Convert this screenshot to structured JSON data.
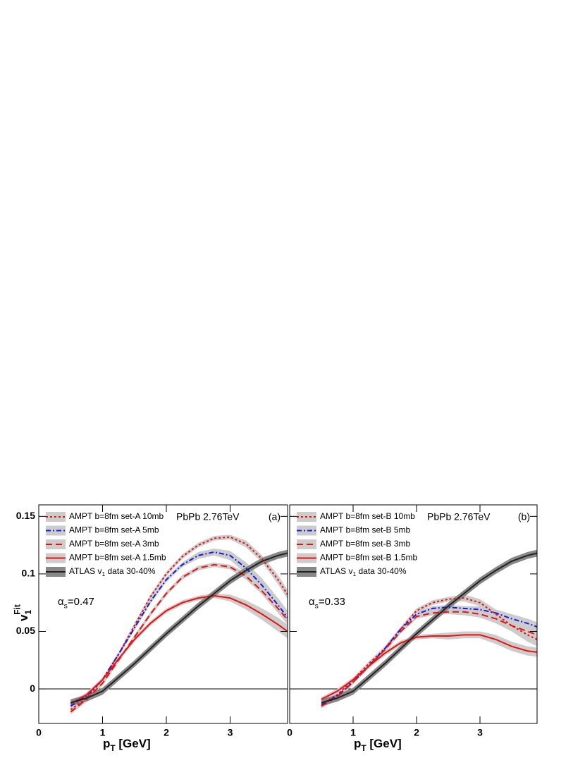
{
  "chart_data": [
    {
      "type": "line",
      "panel_label": "(a)",
      "annotation": "PbPb 2.76TeV",
      "alpha_label": {
        "base": "α",
        "sub": "s",
        "post": "=0.47"
      },
      "x_label": {
        "base": "p",
        "sub": "T",
        "post": " [GeV]"
      },
      "y_label": {
        "base": "v",
        "sub": "1",
        "sup": "Fit"
      },
      "xlim": [
        0,
        3.9
      ],
      "ylim": [
        -0.03,
        0.16
      ],
      "xticks": [
        0,
        1,
        2,
        3
      ],
      "yticks": [
        0,
        0.05,
        0.1,
        0.15
      ],
      "ytick_labels": true,
      "x": [
        0.5,
        0.75,
        1,
        1.25,
        1.5,
        1.75,
        2,
        2.25,
        2.5,
        2.75,
        3,
        3.25,
        3.5,
        3.75,
        3.9
      ],
      "series": [
        {
          "name": "AMPT b=8fm set-A 10mb",
          "color": "#e8120f",
          "dash": "dotted",
          "band_color": "#cccccc",
          "values": [
            -0.018,
            -0.008,
            0.008,
            0.03,
            0.055,
            0.08,
            0.1,
            0.115,
            0.125,
            0.131,
            0.132,
            0.126,
            0.113,
            0.095,
            0.082
          ],
          "errors": [
            0.002,
            0.002,
            0.002,
            0.002,
            0.002,
            0.002,
            0.002,
            0.002,
            0.002,
            0.002,
            0.002,
            0.003,
            0.003,
            0.004,
            0.004
          ]
        },
        {
          "name": "AMPT b=8fm set-A 5mb",
          "color": "#1a1ae0",
          "dash": "dashdot",
          "band_color": "#cccccc",
          "values": [
            -0.015,
            -0.006,
            0.008,
            0.03,
            0.053,
            0.076,
            0.095,
            0.108,
            0.116,
            0.119,
            0.116,
            0.105,
            0.09,
            0.073,
            0.062
          ],
          "errors": [
            0.002,
            0.002,
            0.002,
            0.002,
            0.002,
            0.002,
            0.002,
            0.002,
            0.003,
            0.003,
            0.004,
            0.005,
            0.006,
            0.006,
            0.006
          ]
        },
        {
          "name": "AMPT b=8fm set-A 3mb",
          "color": "#e8120f",
          "dash": "dashed",
          "band_color": "#cccccc",
          "values": [
            -0.02,
            -0.009,
            0.005,
            0.025,
            0.045,
            0.065,
            0.083,
            0.097,
            0.105,
            0.108,
            0.106,
            0.098,
            0.085,
            0.07,
            0.06
          ],
          "errors": [
            0.002,
            0.002,
            0.002,
            0.002,
            0.002,
            0.002,
            0.002,
            0.002,
            0.002,
            0.002,
            0.002,
            0.003,
            0.003,
            0.004,
            0.004
          ]
        },
        {
          "name": "AMPT b=8fm set-A 1.5mb",
          "color": "#e8120f",
          "dash": "solid",
          "band_color": "#cccccc",
          "values": [
            -0.013,
            -0.005,
            0.008,
            0.026,
            0.043,
            0.057,
            0.068,
            0.075,
            0.079,
            0.081,
            0.079,
            0.073,
            0.065,
            0.056,
            0.05
          ],
          "errors": [
            0.002,
            0.002,
            0.002,
            0.002,
            0.002,
            0.002,
            0.002,
            0.002,
            0.002,
            0.002,
            0.003,
            0.004,
            0.005,
            0.006,
            0.006
          ]
        },
        {
          "name": {
            "pre": "ATLAS v",
            "sub": "1",
            "post": " data 30-40%"
          },
          "color": "#222222",
          "dash": "solid",
          "band_color": "#888888",
          "values": [
            -0.012,
            -0.008,
            -0.002,
            0.01,
            0.022,
            0.035,
            0.048,
            0.06,
            0.072,
            0.083,
            0.094,
            0.103,
            0.111,
            0.116,
            0.118
          ],
          "errors": [
            0.003,
            0.003,
            0.003,
            0.003,
            0.003,
            0.003,
            0.003,
            0.003,
            0.003,
            0.003,
            0.003,
            0.003,
            0.003,
            0.003,
            0.003
          ]
        }
      ]
    },
    {
      "type": "line",
      "panel_label": "(b)",
      "annotation": "PbPb 2.76TeV",
      "alpha_label": {
        "base": "α",
        "sub": "s",
        "post": "=0.33"
      },
      "x_label": {
        "base": "p",
        "sub": "T",
        "post": " [GeV]"
      },
      "xlim": [
        0,
        3.9
      ],
      "ylim": [
        -0.03,
        0.16
      ],
      "xticks": [
        0,
        1,
        2,
        3
      ],
      "yticks": [
        0,
        0.05,
        0.1,
        0.15
      ],
      "ytick_labels": false,
      "x": [
        0.5,
        0.75,
        1,
        1.25,
        1.5,
        1.75,
        2,
        2.25,
        2.5,
        2.75,
        3,
        3.25,
        3.5,
        3.75,
        3.9
      ],
      "series": [
        {
          "name": "AMPT b=8fm set-B 10mb",
          "color": "#e8120f",
          "dash": "dotted",
          "band_color": "#cccccc",
          "values": [
            -0.013,
            -0.005,
            0.008,
            0.022,
            0.035,
            0.052,
            0.068,
            0.075,
            0.078,
            0.079,
            0.075,
            0.065,
            0.055,
            0.047,
            0.043
          ],
          "errors": [
            0.002,
            0.002,
            0.002,
            0.002,
            0.002,
            0.002,
            0.002,
            0.002,
            0.002,
            0.003,
            0.003,
            0.004,
            0.005,
            0.006,
            0.006
          ]
        },
        {
          "name": "AMPT b=8fm set-B 5mb",
          "color": "#1a1ae0",
          "dash": "dashdot",
          "band_color": "#cccccc",
          "values": [
            -0.014,
            -0.006,
            0.006,
            0.02,
            0.035,
            0.052,
            0.065,
            0.07,
            0.071,
            0.07,
            0.069,
            0.066,
            0.061,
            0.057,
            0.054
          ],
          "errors": [
            0.002,
            0.002,
            0.002,
            0.002,
            0.002,
            0.002,
            0.002,
            0.002,
            0.002,
            0.002,
            0.003,
            0.003,
            0.004,
            0.004,
            0.004
          ]
        },
        {
          "name": "AMPT b=8fm set-B 3mb",
          "color": "#e8120f",
          "dash": "dashed",
          "band_color": "#cccccc",
          "values": [
            -0.015,
            -0.007,
            0.006,
            0.02,
            0.034,
            0.05,
            0.063,
            0.066,
            0.067,
            0.067,
            0.065,
            0.061,
            0.055,
            0.05,
            0.047
          ],
          "errors": [
            0.002,
            0.002,
            0.002,
            0.002,
            0.002,
            0.002,
            0.002,
            0.002,
            0.002,
            0.003,
            0.003,
            0.004,
            0.005,
            0.006,
            0.006
          ]
        },
        {
          "name": "AMPT b=8fm set-B 1.5mb",
          "color": "#e8120f",
          "dash": "solid",
          "band_color": "#cccccc",
          "values": [
            -0.009,
            -0.002,
            0.008,
            0.02,
            0.031,
            0.04,
            0.045,
            0.046,
            0.046,
            0.047,
            0.047,
            0.043,
            0.037,
            0.033,
            0.032
          ],
          "errors": [
            0.002,
            0.002,
            0.002,
            0.002,
            0.002,
            0.002,
            0.002,
            0.002,
            0.003,
            0.003,
            0.003,
            0.004,
            0.004,
            0.004,
            0.004
          ]
        },
        {
          "name": {
            "pre": "ATLAS v",
            "sub": "1",
            "post": " data 30-40%"
          },
          "color": "#222222",
          "dash": "solid",
          "band_color": "#888888",
          "values": [
            -0.012,
            -0.008,
            -0.002,
            0.01,
            0.022,
            0.035,
            0.048,
            0.06,
            0.072,
            0.083,
            0.094,
            0.103,
            0.111,
            0.116,
            0.118
          ],
          "errors": [
            0.003,
            0.003,
            0.003,
            0.003,
            0.003,
            0.003,
            0.003,
            0.003,
            0.003,
            0.003,
            0.003,
            0.003,
            0.003,
            0.003,
            0.003
          ]
        }
      ]
    }
  ]
}
